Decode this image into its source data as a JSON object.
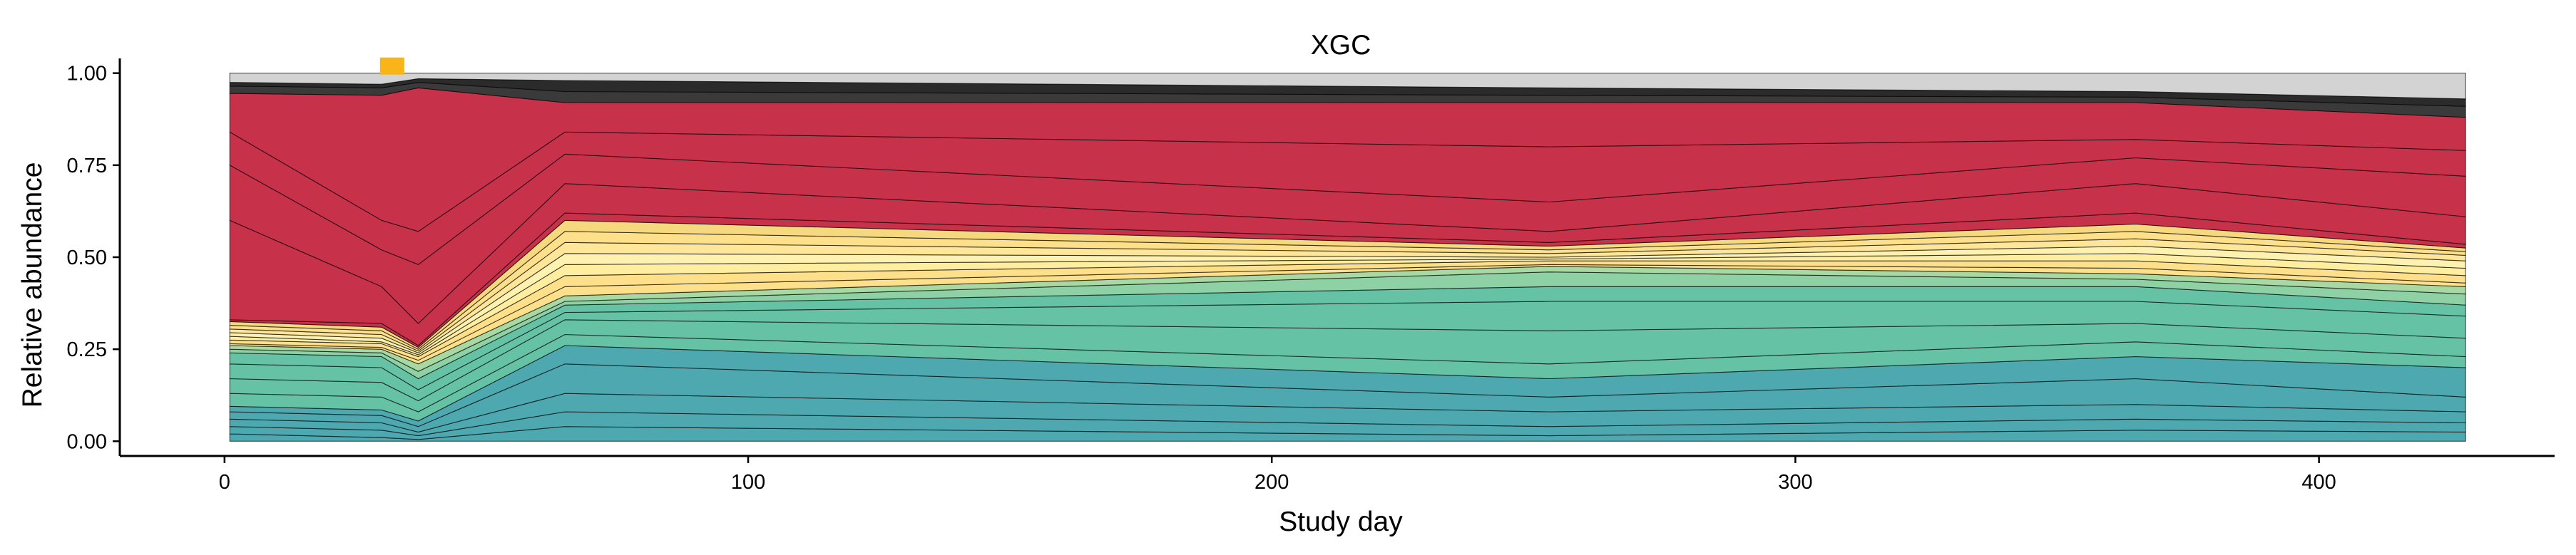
{
  "chart_data": {
    "type": "area",
    "title": "XGC",
    "xlabel": "Study day",
    "ylabel": "Relative abundance",
    "xlim": [
      -20,
      445
    ],
    "ylim": [
      -0.04,
      1.04
    ],
    "x_ticks": [
      0,
      100,
      200,
      300,
      400
    ],
    "y_ticks": [
      0.0,
      0.25,
      0.5,
      0.75,
      1.0
    ],
    "y_tick_labels": [
      "0.00",
      "0.25",
      "0.50",
      "0.75",
      "1.00"
    ],
    "grid": false,
    "legend": "none",
    "x": [
      1,
      30,
      37,
      65,
      253,
      365,
      428
    ],
    "annotation": {
      "marker": "square",
      "x": 32,
      "y": 1.0,
      "color": "#F9B418"
    },
    "layers": [
      {
        "group": "teal",
        "color": "#4DA8AF",
        "tops": [
          0.02,
          0.01,
          0.005,
          0.04,
          0.015,
          0.03,
          0.025
        ]
      },
      {
        "group": "teal",
        "color": "#4DA8AF",
        "tops": [
          0.04,
          0.03,
          0.015,
          0.08,
          0.04,
          0.06,
          0.05
        ]
      },
      {
        "group": "teal",
        "color": "#4DA8AF",
        "tops": [
          0.06,
          0.05,
          0.025,
          0.13,
          0.08,
          0.1,
          0.08
        ]
      },
      {
        "group": "teal",
        "color": "#4DA8AF",
        "tops": [
          0.08,
          0.07,
          0.04,
          0.21,
          0.12,
          0.17,
          0.12
        ]
      },
      {
        "group": "teal",
        "color": "#4DA8AF",
        "tops": [
          0.095,
          0.085,
          0.055,
          0.26,
          0.17,
          0.23,
          0.2
        ]
      },
      {
        "group": "green",
        "color": "#66C2A5",
        "tops": [
          0.13,
          0.12,
          0.08,
          0.29,
          0.21,
          0.27,
          0.23
        ]
      },
      {
        "group": "green",
        "color": "#66C2A5",
        "tops": [
          0.17,
          0.16,
          0.11,
          0.33,
          0.3,
          0.32,
          0.28
        ]
      },
      {
        "group": "green",
        "color": "#66C2A5",
        "tops": [
          0.21,
          0.2,
          0.14,
          0.35,
          0.38,
          0.38,
          0.34
        ]
      },
      {
        "group": "green",
        "color": "#66C2A5",
        "tops": [
          0.24,
          0.23,
          0.17,
          0.37,
          0.42,
          0.42,
          0.37
        ]
      },
      {
        "group": "lightgreen",
        "color": "#8ED1A5",
        "tops": [
          0.25,
          0.24,
          0.19,
          0.38,
          0.46,
          0.44,
          0.4
        ]
      },
      {
        "group": "lightgreen",
        "color": "#A9D9A2",
        "tops": [
          0.26,
          0.25,
          0.21,
          0.395,
          0.475,
          0.455,
          0.42
        ]
      },
      {
        "group": "yellow",
        "color": "#FEE08B",
        "tops": [
          0.265,
          0.255,
          0.22,
          0.42,
          0.48,
          0.47,
          0.43
        ]
      },
      {
        "group": "yellow",
        "color": "#FEE08B",
        "tops": [
          0.275,
          0.265,
          0.23,
          0.45,
          0.49,
          0.49,
          0.45
        ]
      },
      {
        "group": "yellow",
        "color": "#FFEDA0",
        "tops": [
          0.285,
          0.27,
          0.235,
          0.48,
          0.495,
          0.51,
          0.47
        ]
      },
      {
        "group": "yellow",
        "color": "#FFF2B0",
        "tops": [
          0.295,
          0.28,
          0.24,
          0.51,
          0.5,
          0.53,
          0.49
        ]
      },
      {
        "group": "yellow",
        "color": "#FFE699",
        "tops": [
          0.305,
          0.29,
          0.245,
          0.54,
          0.51,
          0.55,
          0.505
        ]
      },
      {
        "group": "yellow",
        "color": "#FEE08B",
        "tops": [
          0.315,
          0.3,
          0.25,
          0.57,
          0.52,
          0.57,
          0.515
        ]
      },
      {
        "group": "yellow",
        "color": "#F6D87E",
        "tops": [
          0.325,
          0.31,
          0.255,
          0.6,
          0.53,
          0.59,
          0.525
        ]
      },
      {
        "group": "red",
        "color": "#C8314A",
        "tops": [
          0.33,
          0.32,
          0.26,
          0.62,
          0.54,
          0.62,
          0.535
        ]
      },
      {
        "group": "red",
        "color": "#C8314A",
        "tops": [
          0.6,
          0.42,
          0.32,
          0.7,
          0.57,
          0.7,
          0.61
        ]
      },
      {
        "group": "red",
        "color": "#C8314A",
        "tops": [
          0.75,
          0.52,
          0.48,
          0.78,
          0.65,
          0.77,
          0.72
        ]
      },
      {
        "group": "red",
        "color": "#C8314A",
        "tops": [
          0.84,
          0.6,
          0.57,
          0.84,
          0.8,
          0.82,
          0.79
        ]
      },
      {
        "group": "red",
        "color": "#C8314A",
        "tops": [
          0.945,
          0.94,
          0.96,
          0.92,
          0.92,
          0.92,
          0.88
        ]
      },
      {
        "group": "dark",
        "color": "#3A3A3A",
        "tops": [
          0.965,
          0.96,
          0.975,
          0.95,
          0.94,
          0.935,
          0.91
        ]
      },
      {
        "group": "dark",
        "color": "#2B2B2B",
        "tops": [
          0.975,
          0.97,
          0.985,
          0.98,
          0.96,
          0.95,
          0.93
        ]
      },
      {
        "group": "other",
        "color": "#D3D3D3",
        "tops": [
          1.0,
          1.0,
          1.0,
          1.0,
          1.0,
          1.0,
          1.0
        ]
      }
    ]
  }
}
